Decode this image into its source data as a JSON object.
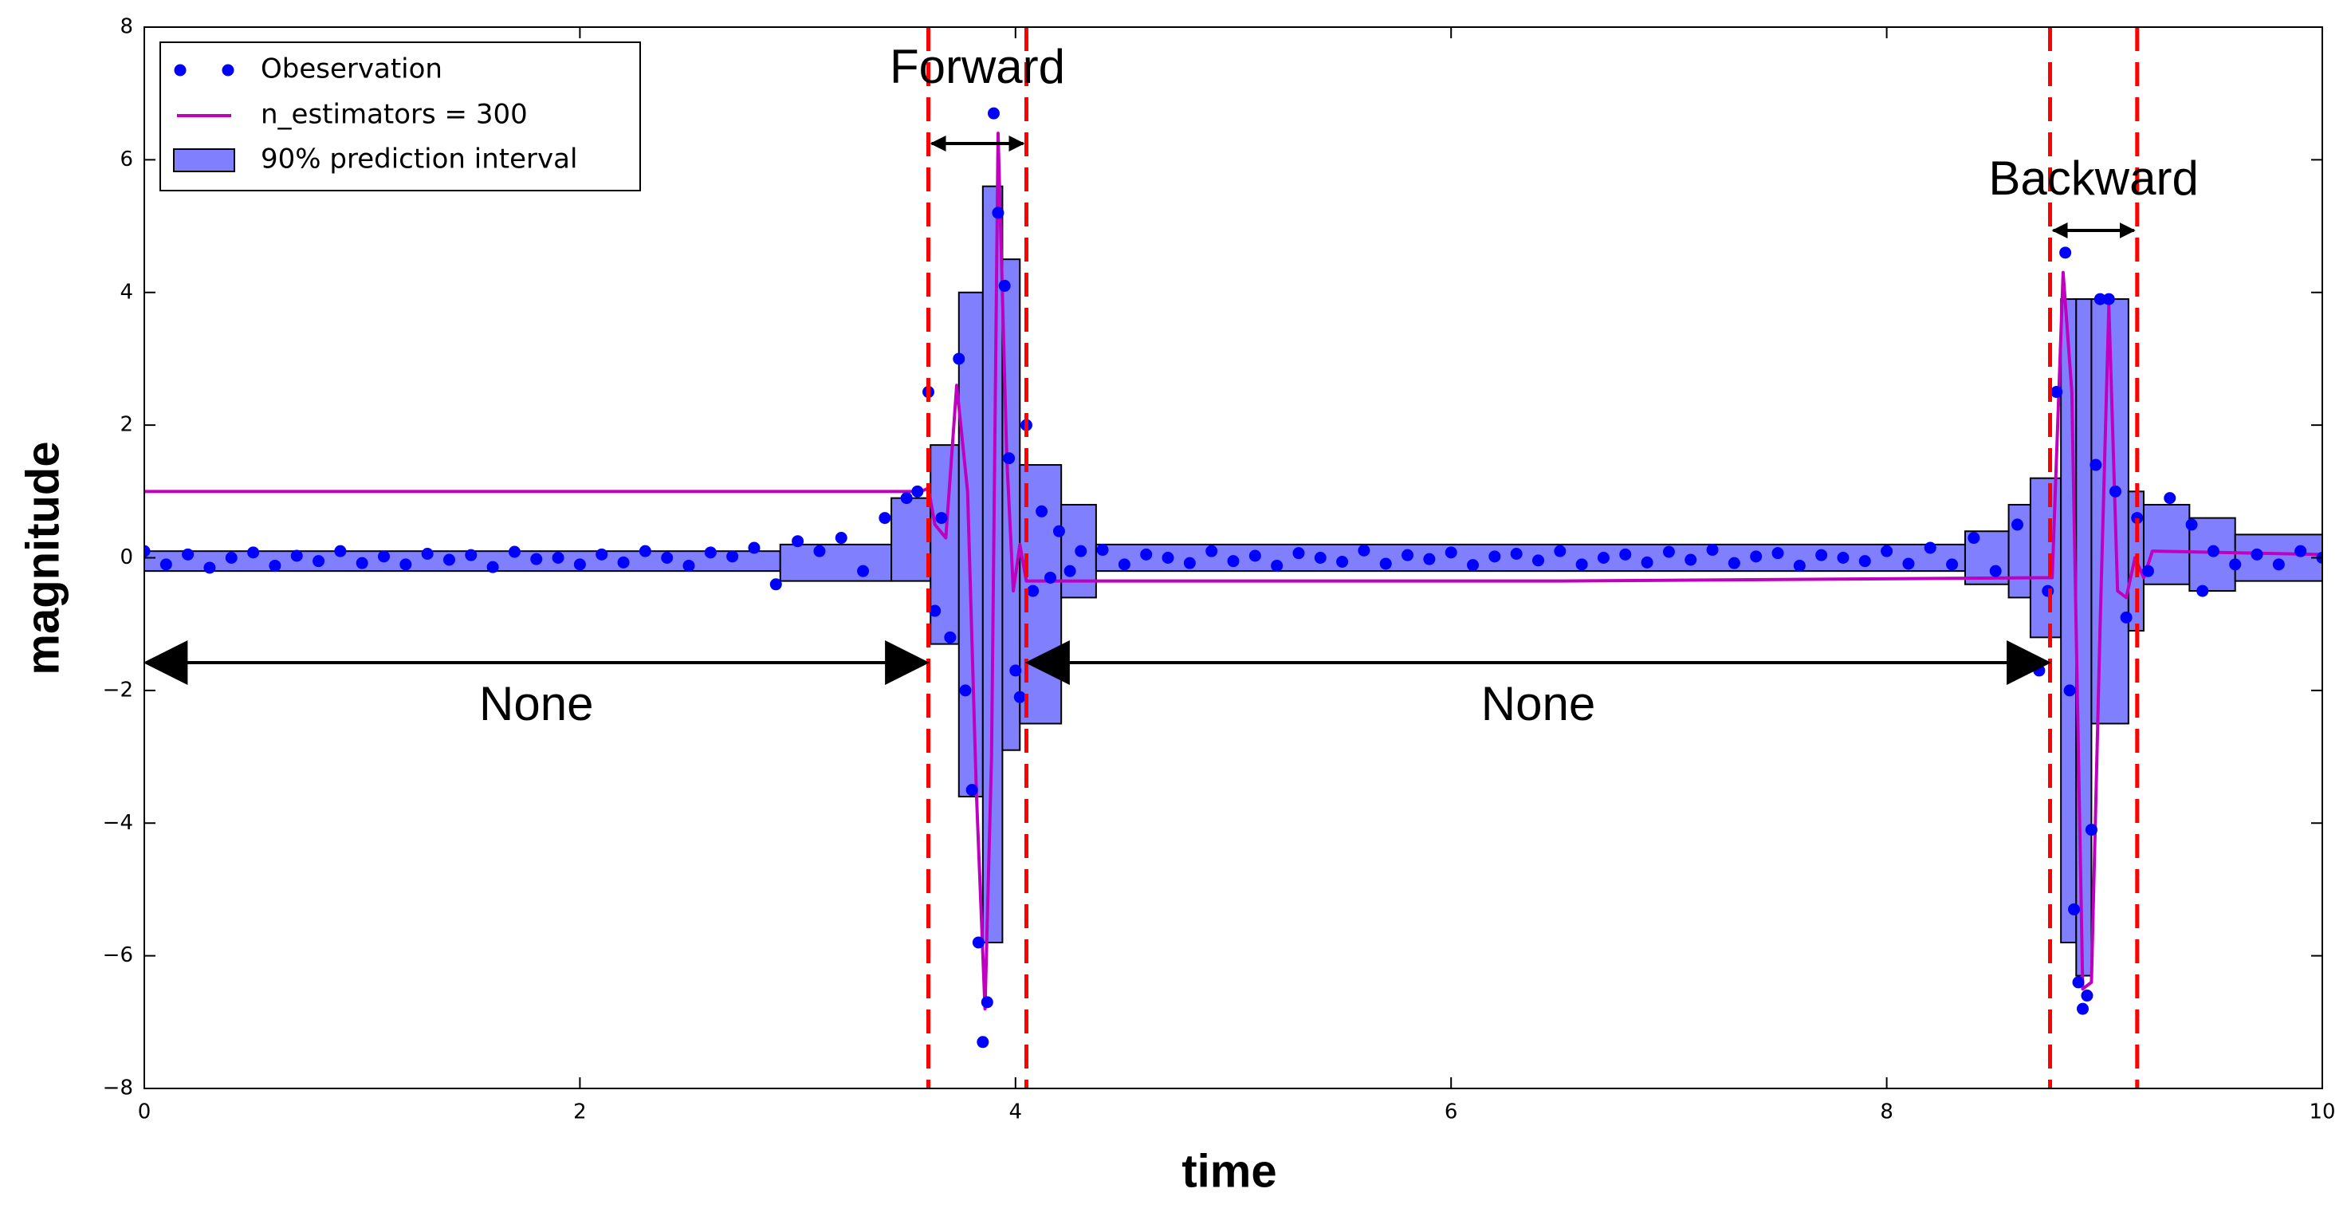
{
  "chart_data": {
    "type": "line",
    "xlabel": "time",
    "ylabel": "magnitude",
    "xlim": [
      0,
      10
    ],
    "ylim": [
      -8,
      8
    ],
    "xticks": [
      0,
      2,
      4,
      6,
      8,
      10
    ],
    "yticks": [
      {
        "value": -8,
        "label": "−8"
      },
      {
        "value": -6,
        "label": "−6"
      },
      {
        "value": -4,
        "label": "−4"
      },
      {
        "value": -2,
        "label": "−2"
      },
      0,
      2,
      4,
      6,
      8
    ],
    "legend": "upper left",
    "series": [
      {
        "name": "Obeservation",
        "type": "scatter",
        "color": "#0000ff",
        "x": [
          0,
          0.1,
          0.2,
          0.3,
          0.4,
          0.5,
          0.6,
          0.7,
          0.8,
          0.9,
          1.0,
          1.1,
          1.2,
          1.3,
          1.4,
          1.5,
          1.6,
          1.7,
          1.8,
          1.9,
          2.0,
          2.1,
          2.2,
          2.3,
          2.4,
          2.5,
          2.6,
          2.7,
          2.8,
          2.9,
          3.0,
          3.1,
          3.2,
          3.3,
          3.4,
          3.5,
          3.55,
          3.6,
          3.63,
          3.66,
          3.7,
          3.74,
          3.77,
          3.8,
          3.83,
          3.85,
          3.87,
          3.9,
          3.92,
          3.95,
          3.97,
          4.0,
          4.02,
          4.05,
          4.08,
          4.12,
          4.16,
          4.2,
          4.25,
          4.3,
          4.4,
          4.5,
          4.6,
          4.7,
          4.8,
          4.9,
          5.0,
          5.1,
          5.2,
          5.3,
          5.4,
          5.5,
          5.6,
          5.7,
          5.8,
          5.9,
          6.0,
          6.1,
          6.2,
          6.3,
          6.4,
          6.5,
          6.6,
          6.7,
          6.8,
          6.9,
          7.0,
          7.1,
          7.2,
          7.3,
          7.4,
          7.5,
          7.6,
          7.7,
          7.8,
          7.9,
          8.0,
          8.1,
          8.2,
          8.3,
          8.4,
          8.5,
          8.6,
          8.7,
          8.74,
          8.78,
          8.82,
          8.84,
          8.86,
          8.88,
          8.9,
          8.92,
          8.94,
          8.96,
          8.98,
          9.02,
          9.05,
          9.1,
          9.15,
          9.2,
          9.3,
          9.4,
          9.45,
          9.5,
          9.6,
          9.7,
          9.8,
          9.9,
          10
        ],
        "values": [
          0.1,
          -0.1,
          0.05,
          -0.15,
          0.0,
          0.08,
          -0.12,
          0.03,
          -0.05,
          0.1,
          -0.08,
          0.02,
          -0.1,
          0.06,
          -0.03,
          0.04,
          -0.14,
          0.09,
          -0.02,
          0.0,
          -0.1,
          0.05,
          -0.07,
          0.1,
          0.0,
          -0.12,
          0.08,
          0.02,
          0.15,
          -0.4,
          0.25,
          0.1,
          0.3,
          -0.2,
          0.6,
          0.9,
          1.0,
          2.5,
          -0.8,
          0.6,
          -1.2,
          3.0,
          -2.0,
          -3.5,
          -5.8,
          -7.3,
          -6.7,
          6.7,
          5.2,
          4.1,
          1.5,
          -1.7,
          -2.1,
          2.0,
          -0.5,
          0.7,
          -0.3,
          0.4,
          -0.2,
          0.1,
          0.12,
          -0.1,
          0.05,
          0.0,
          -0.08,
          0.1,
          -0.05,
          0.03,
          -0.12,
          0.07,
          0.0,
          -0.06,
          0.11,
          -0.09,
          0.04,
          -0.02,
          0.08,
          -0.11,
          0.02,
          0.06,
          -0.04,
          0.1,
          -0.1,
          0.0,
          0.05,
          -0.07,
          0.09,
          -0.03,
          0.12,
          -0.08,
          0.02,
          0.07,
          -0.12,
          0.04,
          0.0,
          -0.05,
          0.1,
          -0.09,
          0.15,
          -0.1,
          0.3,
          -0.2,
          0.5,
          -1.7,
          -0.5,
          2.5,
          4.6,
          -2.0,
          -5.3,
          -6.4,
          -6.8,
          -6.6,
          -4.1,
          1.4,
          3.9,
          3.9,
          1.0,
          -0.9,
          0.6,
          -0.2,
          0.9,
          0.5,
          -0.5,
          0.1,
          -0.1,
          0.05,
          -0.1,
          0.1,
          0.0
        ]
      },
      {
        "name": "n_estimators = 300",
        "type": "line",
        "color": "#bf00bf",
        "x": [
          0,
          3.55,
          3.58,
          3.6,
          3.63,
          3.68,
          3.73,
          3.78,
          3.82,
          3.86,
          3.89,
          3.92,
          3.96,
          3.99,
          4.02,
          4.05,
          6.5,
          8.7,
          8.76,
          8.81,
          8.85,
          8.9,
          8.94,
          8.98,
          9.02,
          9.06,
          9.1,
          9.14,
          9.18,
          9.22,
          10
        ],
        "values": [
          1.0,
          1.0,
          1.02,
          1.05,
          0.5,
          0.3,
          2.6,
          1.0,
          -3.5,
          -6.8,
          -3.0,
          6.4,
          1.5,
          -0.5,
          0.2,
          -0.35,
          -0.35,
          -0.3,
          -0.3,
          4.3,
          2.5,
          -6.5,
          -6.4,
          -1.0,
          3.8,
          -0.5,
          -0.6,
          0.0,
          -0.3,
          0.1,
          0.05
        ]
      }
    ],
    "interval": {
      "name": "90% prediction interval",
      "color": "#8080ff",
      "edges": [
        0,
        2.92,
        3.43,
        3.61,
        3.74,
        3.85,
        3.94,
        4.02,
        4.21,
        4.37,
        8.36,
        8.56,
        8.66,
        8.8,
        8.87,
        8.94,
        9.11,
        9.18,
        9.39,
        9.6,
        10
      ],
      "lower": [
        -0.2,
        -0.35,
        -0.35,
        -1.3,
        -3.6,
        -5.8,
        -2.9,
        -2.5,
        -0.6,
        -0.2,
        -0.4,
        -0.6,
        -1.2,
        -5.8,
        -6.3,
        -2.5,
        -1.1,
        -0.4,
        -0.5,
        -0.35
      ],
      "upper": [
        0.1,
        0.2,
        0.9,
        1.7,
        4.0,
        5.6,
        4.5,
        1.4,
        0.8,
        0.2,
        0.4,
        0.8,
        1.2,
        3.9,
        3.9,
        3.9,
        1.0,
        0.8,
        0.6,
        0.35
      ]
    },
    "vlines": {
      "color": "#ff0000",
      "x": [
        3.6,
        4.05,
        8.75,
        9.15
      ]
    },
    "annotations": [
      "Forward",
      "Backward",
      "None",
      "None"
    ]
  }
}
